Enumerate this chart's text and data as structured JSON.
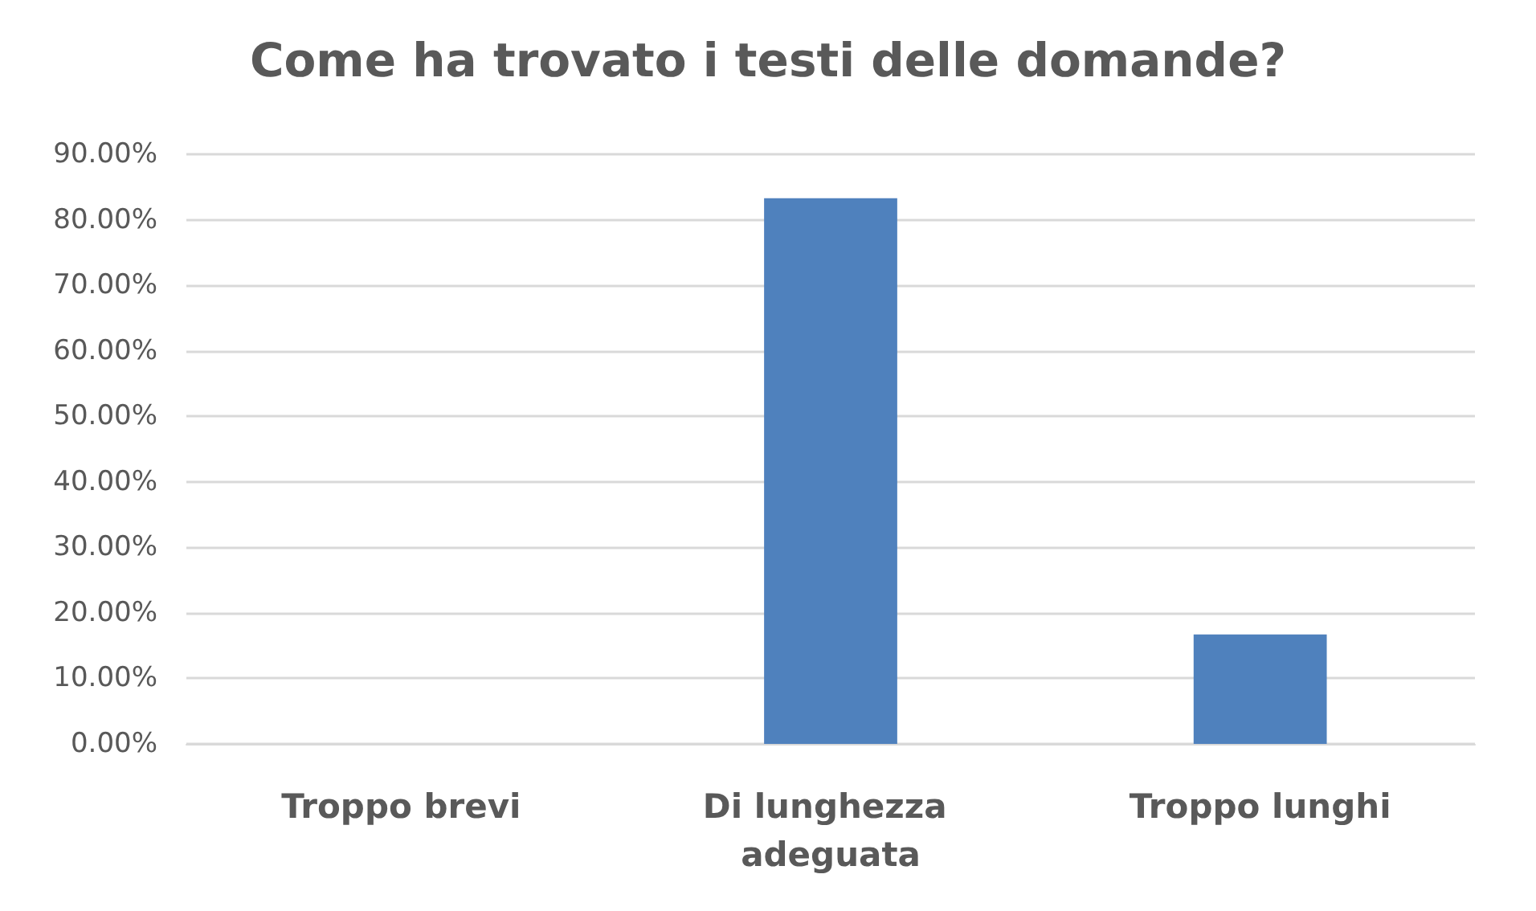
{
  "chart_data": {
    "type": "bar",
    "title": "Come ha trovato i testi delle domande?",
    "categories": [
      "Troppo brevi",
      "Di lunghezza adeguata",
      "Troppo lunghi"
    ],
    "values": [
      0,
      83.3,
      16.7
    ],
    "color": "#4f81bd",
    "ylim": [
      0,
      90
    ],
    "yticks": [
      {
        "value": 0,
        "label": "0.00%"
      },
      {
        "value": 10,
        "label": "10.00%"
      },
      {
        "value": 20,
        "label": "20.00%"
      },
      {
        "value": 30,
        "label": "30.00%"
      },
      {
        "value": 40,
        "label": "40.00%"
      },
      {
        "value": 50,
        "label": "50.00%"
      },
      {
        "value": 60,
        "label": "60.00%"
      },
      {
        "value": 70,
        "label": "70.00%"
      },
      {
        "value": 80,
        "label": "80.00%"
      },
      {
        "value": 90,
        "label": "90.00%"
      }
    ],
    "grid": "y"
  }
}
